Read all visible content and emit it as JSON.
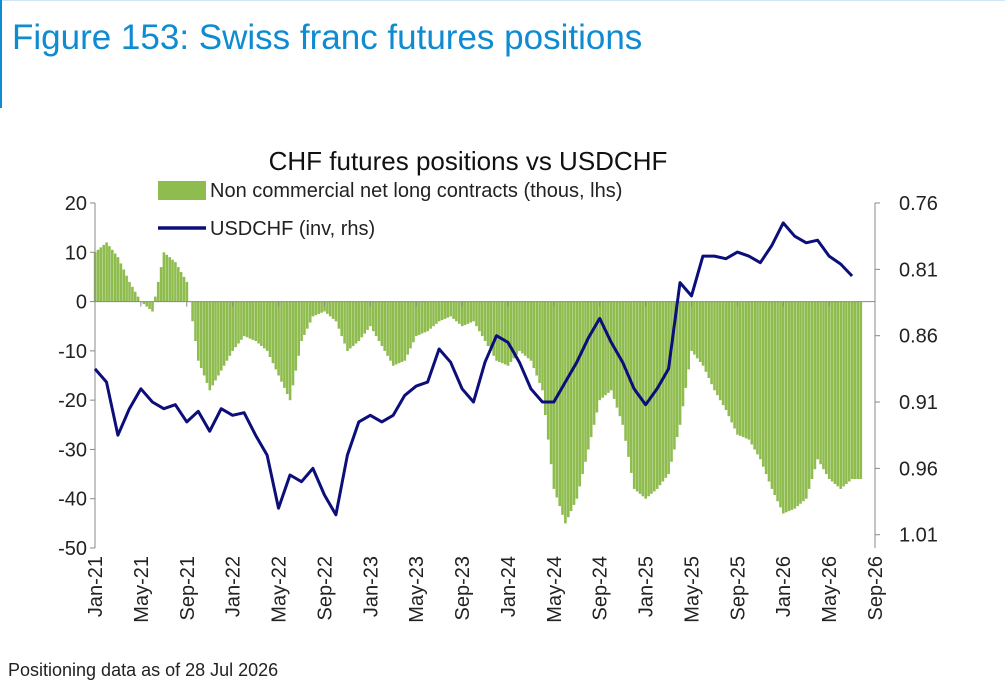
{
  "figure": {
    "title": "Figure 153: Swiss franc futures positions",
    "footnote": "Positioning data as of 28 Jul 2026"
  },
  "colors": {
    "figure_title": "#0e8bd1",
    "bars": "#8fbc4e",
    "line": "#0c0e7a"
  },
  "chart_data": {
    "type": "bar+line",
    "title": "CHF futures positions  vs USDCHF",
    "legend_position": "top-left",
    "grid": false,
    "x": {
      "tick_labels": [
        "Jan-21",
        "May-21",
        "Sep-21",
        "Jan-22",
        "May-22",
        "Sep-22",
        "Jan-23",
        "May-23",
        "Sep-23",
        "Jan-24",
        "May-24",
        "Sep-24",
        "Jan-25",
        "May-25",
        "Sep-25",
        "Jan-26",
        "May-26",
        "Sep-26"
      ],
      "range": [
        "2021-01",
        "2026-09"
      ]
    },
    "y_left": {
      "ticks": [
        "20",
        "10",
        "0",
        "-10",
        "-20",
        "-30",
        "-40",
        "-50"
      ],
      "range": [
        -50,
        20
      ]
    },
    "y_right": {
      "ticks": [
        "0.76",
        "0.81",
        "0.86",
        "0.91",
        "0.96",
        "1.01"
      ],
      "range": [
        0.76,
        1.02
      ],
      "inverted": true
    },
    "series": [
      {
        "name": "Non commercial net long contracts (thous, lhs)",
        "type": "bar",
        "axis": "left",
        "points": [
          [
            "2021-01",
            10
          ],
          [
            "2021-02",
            12
          ],
          [
            "2021-03",
            9
          ],
          [
            "2021-04",
            4
          ],
          [
            "2021-05",
            0
          ],
          [
            "2021-06",
            -2
          ],
          [
            "2021-07",
            10
          ],
          [
            "2021-08",
            8
          ],
          [
            "2021-09",
            4
          ],
          [
            "2021-10",
            -12
          ],
          [
            "2021-11",
            -18
          ],
          [
            "2021-12",
            -14
          ],
          [
            "2022-01",
            -10
          ],
          [
            "2022-02",
            -7
          ],
          [
            "2022-03",
            -8
          ],
          [
            "2022-04",
            -10
          ],
          [
            "2022-05",
            -15
          ],
          [
            "2022-06",
            -20
          ],
          [
            "2022-07",
            -8
          ],
          [
            "2022-08",
            -3
          ],
          [
            "2022-09",
            -2
          ],
          [
            "2022-10",
            -4
          ],
          [
            "2022-11",
            -10
          ],
          [
            "2022-12",
            -8
          ],
          [
            "2023-01",
            -5
          ],
          [
            "2023-02",
            -9
          ],
          [
            "2023-03",
            -13
          ],
          [
            "2023-04",
            -12
          ],
          [
            "2023-05",
            -7
          ],
          [
            "2023-06",
            -6
          ],
          [
            "2023-07",
            -4
          ],
          [
            "2023-08",
            -3
          ],
          [
            "2023-09",
            -5
          ],
          [
            "2023-10",
            -4
          ],
          [
            "2023-11",
            -8
          ],
          [
            "2023-12",
            -12
          ],
          [
            "2024-01",
            -13
          ],
          [
            "2024-02",
            -10
          ],
          [
            "2024-03",
            -12
          ],
          [
            "2024-04",
            -18
          ],
          [
            "2024-05",
            -38
          ],
          [
            "2024-06",
            -45
          ],
          [
            "2024-07",
            -40
          ],
          [
            "2024-08",
            -30
          ],
          [
            "2024-09",
            -20
          ],
          [
            "2024-10",
            -18
          ],
          [
            "2024-11",
            -25
          ],
          [
            "2024-12",
            -38
          ],
          [
            "2025-01",
            -40
          ],
          [
            "2025-02",
            -38
          ],
          [
            "2025-03",
            -35
          ],
          [
            "2025-04",
            -25
          ],
          [
            "2025-05",
            -10
          ],
          [
            "2025-06",
            -13
          ],
          [
            "2025-07",
            -18
          ],
          [
            "2025-08",
            -22
          ],
          [
            "2025-09",
            -27
          ],
          [
            "2025-10",
            -28
          ],
          [
            "2025-11",
            -32
          ],
          [
            "2025-12",
            -38
          ],
          [
            "2026-01",
            -43
          ],
          [
            "2026-02",
            -42
          ],
          [
            "2026-03",
            -40
          ],
          [
            "2026-04",
            -32
          ],
          [
            "2026-05",
            -36
          ],
          [
            "2026-06",
            -38
          ],
          [
            "2026-07",
            -36
          ]
        ]
      },
      {
        "name": "USDCHF (inv, rhs)",
        "type": "line",
        "axis": "right",
        "points": [
          [
            "2021-01",
            0.885
          ],
          [
            "2021-02",
            0.895
          ],
          [
            "2021-03",
            0.935
          ],
          [
            "2021-04",
            0.915
          ],
          [
            "2021-05",
            0.9
          ],
          [
            "2021-06",
            0.91
          ],
          [
            "2021-07",
            0.915
          ],
          [
            "2021-08",
            0.912
          ],
          [
            "2021-09",
            0.925
          ],
          [
            "2021-10",
            0.917
          ],
          [
            "2021-11",
            0.932
          ],
          [
            "2021-12",
            0.915
          ],
          [
            "2022-01",
            0.92
          ],
          [
            "2022-02",
            0.918
          ],
          [
            "2022-03",
            0.935
          ],
          [
            "2022-04",
            0.95
          ],
          [
            "2022-05",
            0.99
          ],
          [
            "2022-06",
            0.965
          ],
          [
            "2022-07",
            0.97
          ],
          [
            "2022-08",
            0.96
          ],
          [
            "2022-09",
            0.98
          ],
          [
            "2022-10",
            0.995
          ],
          [
            "2022-11",
            0.95
          ],
          [
            "2022-12",
            0.925
          ],
          [
            "2023-01",
            0.92
          ],
          [
            "2023-02",
            0.925
          ],
          [
            "2023-03",
            0.92
          ],
          [
            "2023-04",
            0.905
          ],
          [
            "2023-05",
            0.898
          ],
          [
            "2023-06",
            0.895
          ],
          [
            "2023-07",
            0.87
          ],
          [
            "2023-08",
            0.88
          ],
          [
            "2023-09",
            0.9
          ],
          [
            "2023-10",
            0.91
          ],
          [
            "2023-11",
            0.88
          ],
          [
            "2023-12",
            0.86
          ],
          [
            "2024-01",
            0.865
          ],
          [
            "2024-02",
            0.88
          ],
          [
            "2024-03",
            0.9
          ],
          [
            "2024-04",
            0.91
          ],
          [
            "2024-05",
            0.91
          ],
          [
            "2024-06",
            0.895
          ],
          [
            "2024-07",
            0.88
          ],
          [
            "2024-08",
            0.862
          ],
          [
            "2024-09",
            0.847
          ],
          [
            "2024-10",
            0.865
          ],
          [
            "2024-11",
            0.88
          ],
          [
            "2024-12",
            0.9
          ],
          [
            "2025-01",
            0.912
          ],
          [
            "2025-02",
            0.9
          ],
          [
            "2025-03",
            0.885
          ],
          [
            "2025-04",
            0.82
          ],
          [
            "2025-05",
            0.83
          ],
          [
            "2025-06",
            0.8
          ],
          [
            "2025-07",
            0.8
          ],
          [
            "2025-08",
            0.802
          ],
          [
            "2025-09",
            0.797
          ],
          [
            "2025-10",
            0.8
          ],
          [
            "2025-11",
            0.805
          ],
          [
            "2025-12",
            0.792
          ],
          [
            "2026-01",
            0.775
          ],
          [
            "2026-02",
            0.785
          ],
          [
            "2026-03",
            0.79
          ],
          [
            "2026-04",
            0.788
          ],
          [
            "2026-05",
            0.8
          ],
          [
            "2026-06",
            0.806
          ],
          [
            "2026-07",
            0.815
          ]
        ]
      }
    ]
  }
}
